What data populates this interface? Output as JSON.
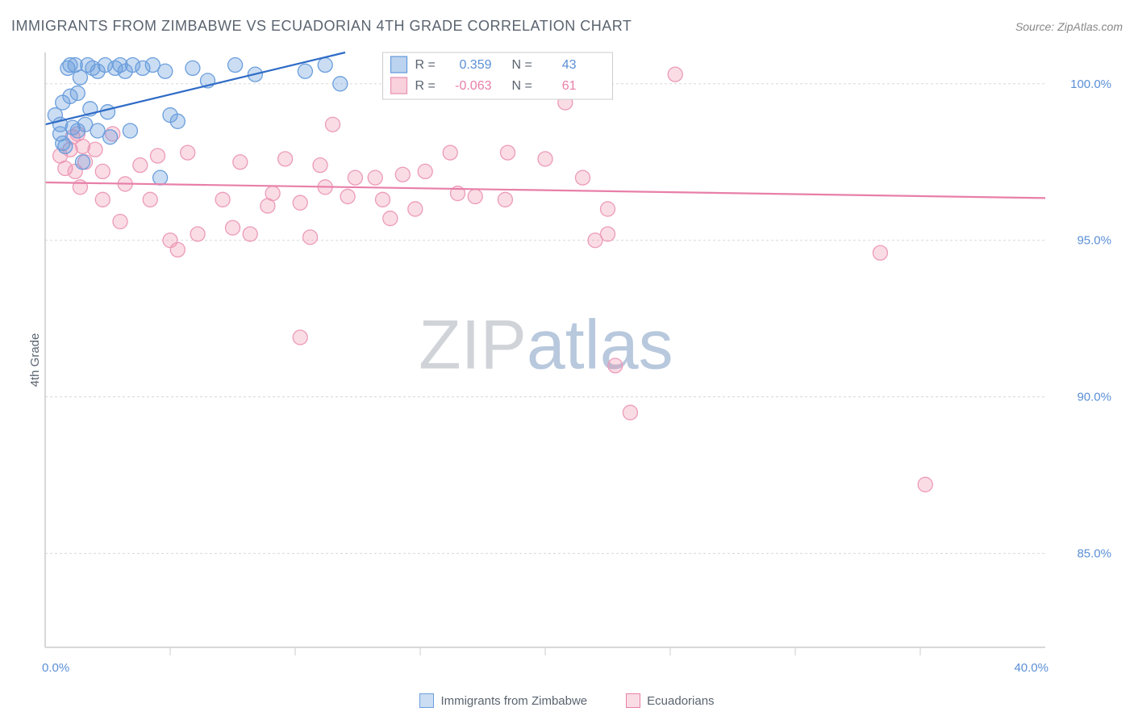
{
  "title": "IMMIGRANTS FROM ZIMBABWE VS ECUADORIAN 4TH GRADE CORRELATION CHART",
  "source": "Source: ZipAtlas.com",
  "ylabel": "4th Grade",
  "watermark": {
    "part1": "ZIP",
    "part2": "atlas"
  },
  "chart": {
    "type": "scatter",
    "xlim": [
      0,
      40
    ],
    "ylim": [
      82,
      101
    ],
    "xticks": [
      0,
      40
    ],
    "xtick_labels": [
      "0.0%",
      "40.0%"
    ],
    "xtick_minor": [
      5,
      10,
      15,
      20,
      25,
      30,
      35
    ],
    "yticks": [
      85,
      90,
      95,
      100
    ],
    "ytick_labels": [
      "85.0%",
      "90.0%",
      "95.0%",
      "100.0%"
    ],
    "grid_color": "#d8d8d8",
    "axis_color": "#cccccc",
    "background_color": "#ffffff",
    "series": [
      {
        "name": "Immigrants from Zimbabwe",
        "marker_color_fill": "rgba(106,158,220,0.35)",
        "marker_color_stroke": "#6a9edc",
        "marker_radius": 9,
        "trend_color": "#2e6bc6",
        "trend_width": 2.2,
        "trend": {
          "x1": 0,
          "y1": 98.7,
          "x2": 12,
          "y2": 101
        },
        "r": "0.359",
        "n": "43",
        "points": [
          [
            0.4,
            99.0
          ],
          [
            0.6,
            98.4
          ],
          [
            0.6,
            98.7
          ],
          [
            0.7,
            99.4
          ],
          [
            0.7,
            98.1
          ],
          [
            0.9,
            100.5
          ],
          [
            1.0,
            100.6
          ],
          [
            1.0,
            99.6
          ],
          [
            1.1,
            98.6
          ],
          [
            1.2,
            100.6
          ],
          [
            1.3,
            99.7
          ],
          [
            1.3,
            98.5
          ],
          [
            1.4,
            100.2
          ],
          [
            1.5,
            97.5
          ],
          [
            1.6,
            98.7
          ],
          [
            1.7,
            100.6
          ],
          [
            1.8,
            99.2
          ],
          [
            1.9,
            100.5
          ],
          [
            2.1,
            100.4
          ],
          [
            2.1,
            98.5
          ],
          [
            2.4,
            100.6
          ],
          [
            2.5,
            99.1
          ],
          [
            2.6,
            98.3
          ],
          [
            2.8,
            100.5
          ],
          [
            3.0,
            100.6
          ],
          [
            3.2,
            100.4
          ],
          [
            3.4,
            98.5
          ],
          [
            3.5,
            100.6
          ],
          [
            3.9,
            100.5
          ],
          [
            4.3,
            100.6
          ],
          [
            4.6,
            97.0
          ],
          [
            4.8,
            100.4
          ],
          [
            5.0,
            99.0
          ],
          [
            5.3,
            98.8
          ],
          [
            5.9,
            100.5
          ],
          [
            6.5,
            100.1
          ],
          [
            7.6,
            100.6
          ],
          [
            8.4,
            100.3
          ],
          [
            10.4,
            100.4
          ],
          [
            11.2,
            100.6
          ],
          [
            11.8,
            100.0
          ],
          [
            15.5,
            100.6
          ],
          [
            0.8,
            98.0
          ]
        ]
      },
      {
        "name": "Ecuadorians",
        "marker_color_fill": "rgba(240,140,170,0.30)",
        "marker_color_stroke": "#ec9bb8",
        "marker_radius": 9,
        "trend_color": "#e87fa8",
        "trend_width": 2.2,
        "trend": {
          "x1": 0,
          "y1": 96.85,
          "x2": 40,
          "y2": 96.35
        },
        "r": "-0.063",
        "n": "61",
        "points": [
          [
            0.6,
            97.7
          ],
          [
            0.8,
            97.3
          ],
          [
            1.0,
            97.9
          ],
          [
            1.1,
            98.3
          ],
          [
            1.2,
            97.2
          ],
          [
            1.3,
            98.4
          ],
          [
            1.4,
            96.7
          ],
          [
            1.5,
            98.0
          ],
          [
            1.6,
            97.5
          ],
          [
            2.0,
            97.9
          ],
          [
            2.3,
            97.2
          ],
          [
            2.3,
            96.3
          ],
          [
            2.7,
            98.4
          ],
          [
            3.0,
            95.6
          ],
          [
            3.2,
            96.8
          ],
          [
            3.8,
            97.4
          ],
          [
            4.2,
            96.3
          ],
          [
            4.5,
            97.7
          ],
          [
            5.0,
            95.0
          ],
          [
            5.3,
            94.7
          ],
          [
            5.7,
            97.8
          ],
          [
            6.1,
            95.2
          ],
          [
            7.1,
            96.3
          ],
          [
            7.5,
            95.4
          ],
          [
            7.8,
            97.5
          ],
          [
            8.2,
            95.2
          ],
          [
            8.9,
            96.1
          ],
          [
            9.1,
            96.5
          ],
          [
            9.6,
            97.6
          ],
          [
            10.2,
            96.2
          ],
          [
            10.2,
            91.9
          ],
          [
            10.6,
            95.1
          ],
          [
            11.0,
            97.4
          ],
          [
            11.2,
            96.7
          ],
          [
            11.5,
            98.7
          ],
          [
            12.1,
            96.4
          ],
          [
            12.4,
            97.0
          ],
          [
            13.2,
            97.0
          ],
          [
            13.5,
            96.3
          ],
          [
            13.8,
            95.7
          ],
          [
            14.3,
            97.1
          ],
          [
            14.8,
            96.0
          ],
          [
            15.2,
            97.2
          ],
          [
            16.2,
            97.8
          ],
          [
            16.5,
            96.5
          ],
          [
            17.2,
            96.4
          ],
          [
            17.6,
            100.5
          ],
          [
            18.4,
            96.3
          ],
          [
            18.5,
            97.8
          ],
          [
            19.8,
            100.5
          ],
          [
            20.0,
            97.6
          ],
          [
            20.8,
            99.4
          ],
          [
            21.5,
            97.0
          ],
          [
            22.5,
            96.0
          ],
          [
            22.5,
            95.2
          ],
          [
            22.8,
            91.0
          ],
          [
            23.4,
            89.5
          ],
          [
            25.2,
            100.3
          ],
          [
            33.4,
            94.6
          ],
          [
            35.2,
            87.2
          ],
          [
            22.0,
            95.0
          ]
        ]
      }
    ],
    "correlation_box": {
      "x": 13.5,
      "y_top": 101,
      "rows": [
        {
          "swatch": "blue",
          "r_label": "R =",
          "r_val": "0.359",
          "n_label": "N =",
          "n_val": "43",
          "val_class": "corr-val-blue"
        },
        {
          "swatch": "pink",
          "r_label": "R =",
          "r_val": "-0.063",
          "n_label": "N =",
          "n_val": "61",
          "val_class": "corr-val-pink"
        }
      ]
    }
  },
  "footer_legend": [
    {
      "swatch_class": "blue",
      "label": "Immigrants from Zimbabwe"
    },
    {
      "swatch_class": "pink",
      "label": "Ecuadorians"
    }
  ]
}
